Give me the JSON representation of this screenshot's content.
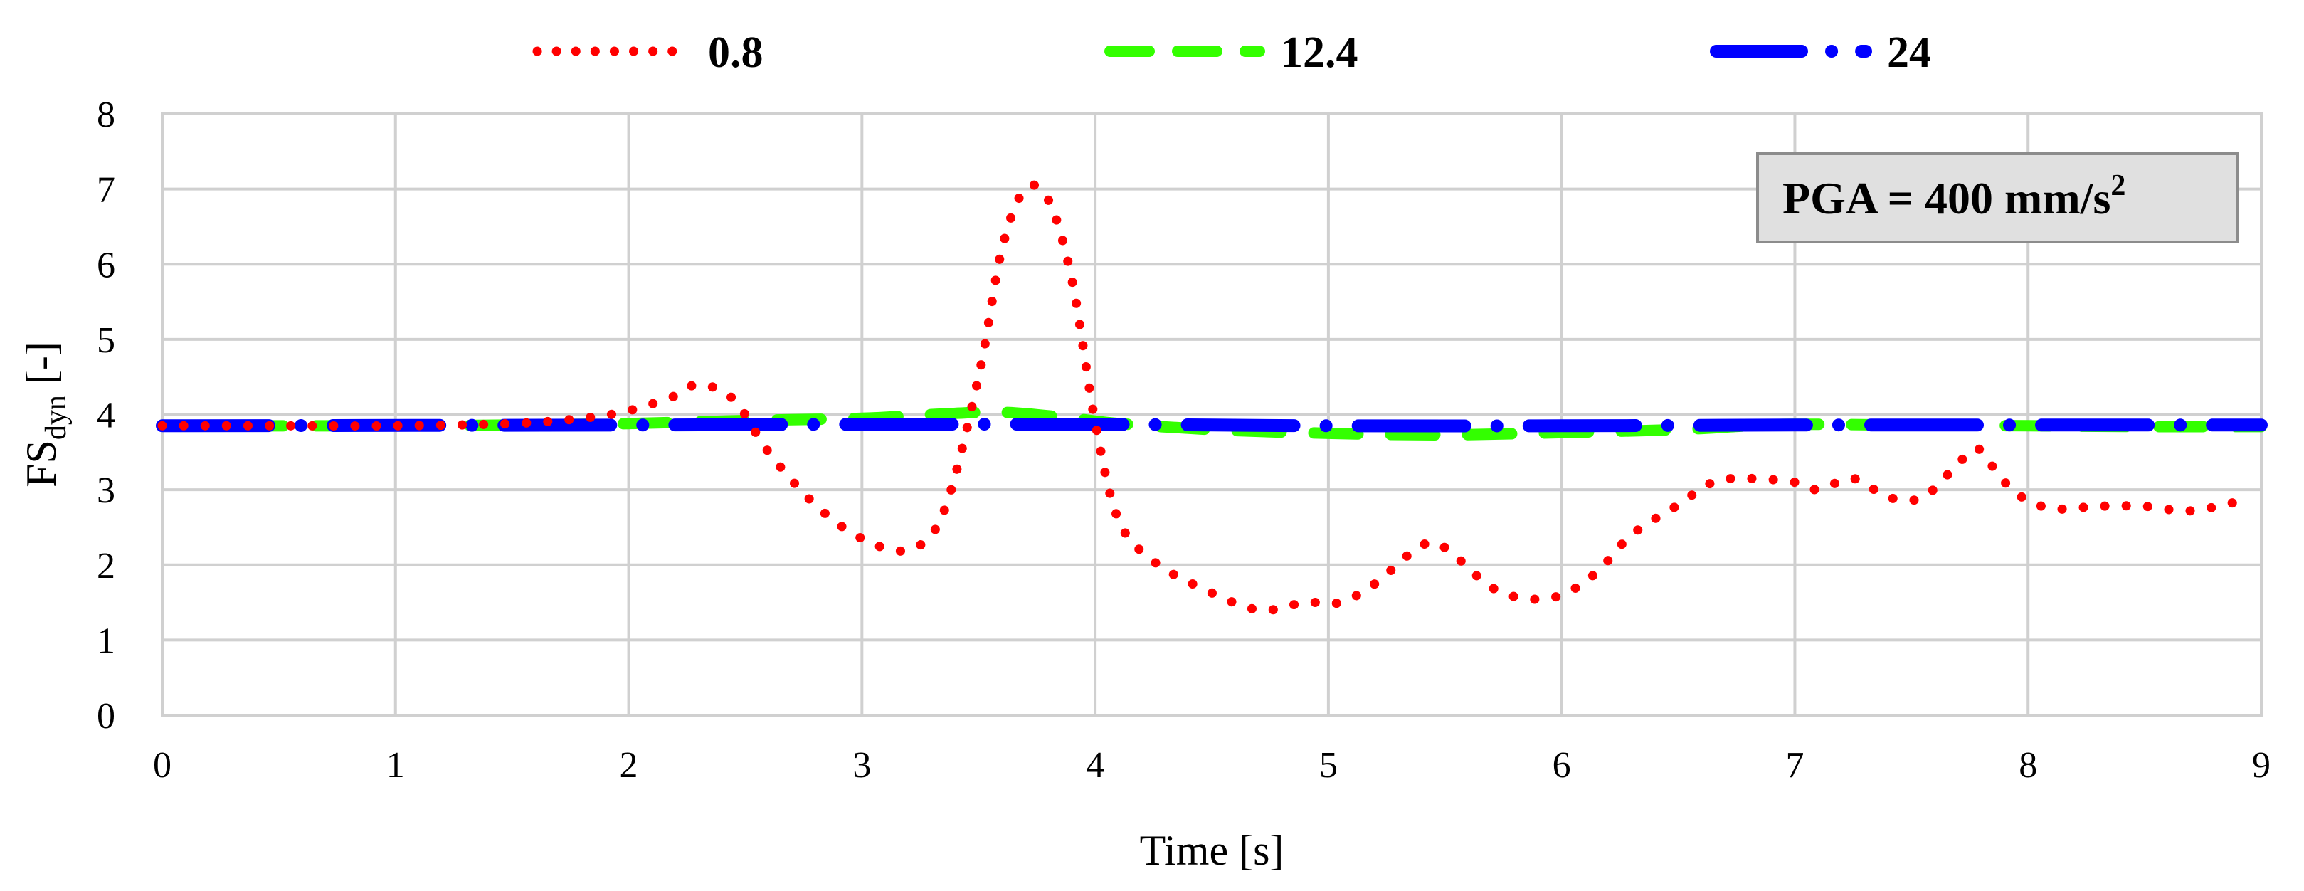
{
  "chart_data": {
    "type": "line",
    "xlabel": "Time [s]",
    "ylabel_main": "FS",
    "ylabel_sub": "dyn",
    "ylabel_suffix": " [-]",
    "xlim": [
      0,
      9
    ],
    "ylim": [
      0,
      8
    ],
    "xticks": [
      0,
      1,
      2,
      3,
      4,
      5,
      6,
      7,
      8,
      9
    ],
    "yticks": [
      0,
      1,
      2,
      3,
      4,
      5,
      6,
      7,
      8
    ],
    "grid": true,
    "legend_position": "top",
    "annotation": {
      "text": "PGA = 400 mm/s",
      "sup": "2"
    },
    "series": [
      {
        "name": "0.8",
        "color": "#ff0000",
        "style": "dotted",
        "x": [
          0.0,
          0.5,
          1.0,
          1.5,
          1.8,
          2.0,
          2.2,
          2.3,
          2.45,
          2.6,
          2.8,
          3.0,
          3.2,
          3.35,
          3.5,
          3.6,
          3.7,
          3.8,
          3.9,
          4.0,
          4.1,
          4.25,
          4.45,
          4.7,
          4.9,
          5.05,
          5.2,
          5.35,
          5.45,
          5.55,
          5.7,
          5.85,
          6.0,
          6.15,
          6.3,
          6.5,
          6.65,
          6.8,
          7.0,
          7.1,
          7.25,
          7.4,
          7.55,
          7.7,
          7.78,
          7.85,
          7.95,
          8.1,
          8.3,
          8.5,
          8.7,
          8.95
        ],
        "y": [
          3.85,
          3.85,
          3.85,
          3.88,
          3.95,
          4.05,
          4.25,
          4.4,
          4.2,
          3.5,
          2.8,
          2.35,
          2.2,
          2.7,
          4.5,
          6.2,
          7.0,
          6.85,
          5.8,
          3.9,
          2.6,
          2.05,
          1.7,
          1.4,
          1.5,
          1.5,
          1.75,
          2.15,
          2.3,
          2.1,
          1.7,
          1.55,
          1.6,
          1.9,
          2.4,
          2.8,
          3.1,
          3.15,
          3.1,
          3.0,
          3.15,
          2.9,
          2.9,
          3.35,
          3.55,
          3.3,
          2.95,
          2.75,
          2.78,
          2.78,
          2.72,
          2.88
        ]
      },
      {
        "name": "12.4",
        "color": "#33ff00",
        "style": "dashed",
        "x": [
          0.0,
          1.0,
          1.5,
          2.0,
          2.5,
          3.0,
          3.3,
          3.6,
          3.9,
          4.1,
          4.5,
          5.0,
          5.5,
          6.0,
          6.5,
          6.8,
          7.0,
          7.5,
          8.0,
          8.5,
          9.0
        ],
        "y": [
          3.85,
          3.85,
          3.86,
          3.88,
          3.92,
          3.95,
          4.0,
          4.03,
          3.95,
          3.88,
          3.8,
          3.75,
          3.73,
          3.76,
          3.8,
          3.85,
          3.87,
          3.86,
          3.85,
          3.84,
          3.84
        ]
      },
      {
        "name": "24",
        "color": "#0000ff",
        "style": "dashdot",
        "x": [
          0.0,
          2.0,
          3.0,
          4.0,
          5.0,
          6.0,
          7.0,
          8.0,
          9.0
        ],
        "y": [
          3.85,
          3.86,
          3.87,
          3.87,
          3.85,
          3.85,
          3.86,
          3.86,
          3.86
        ]
      }
    ]
  }
}
